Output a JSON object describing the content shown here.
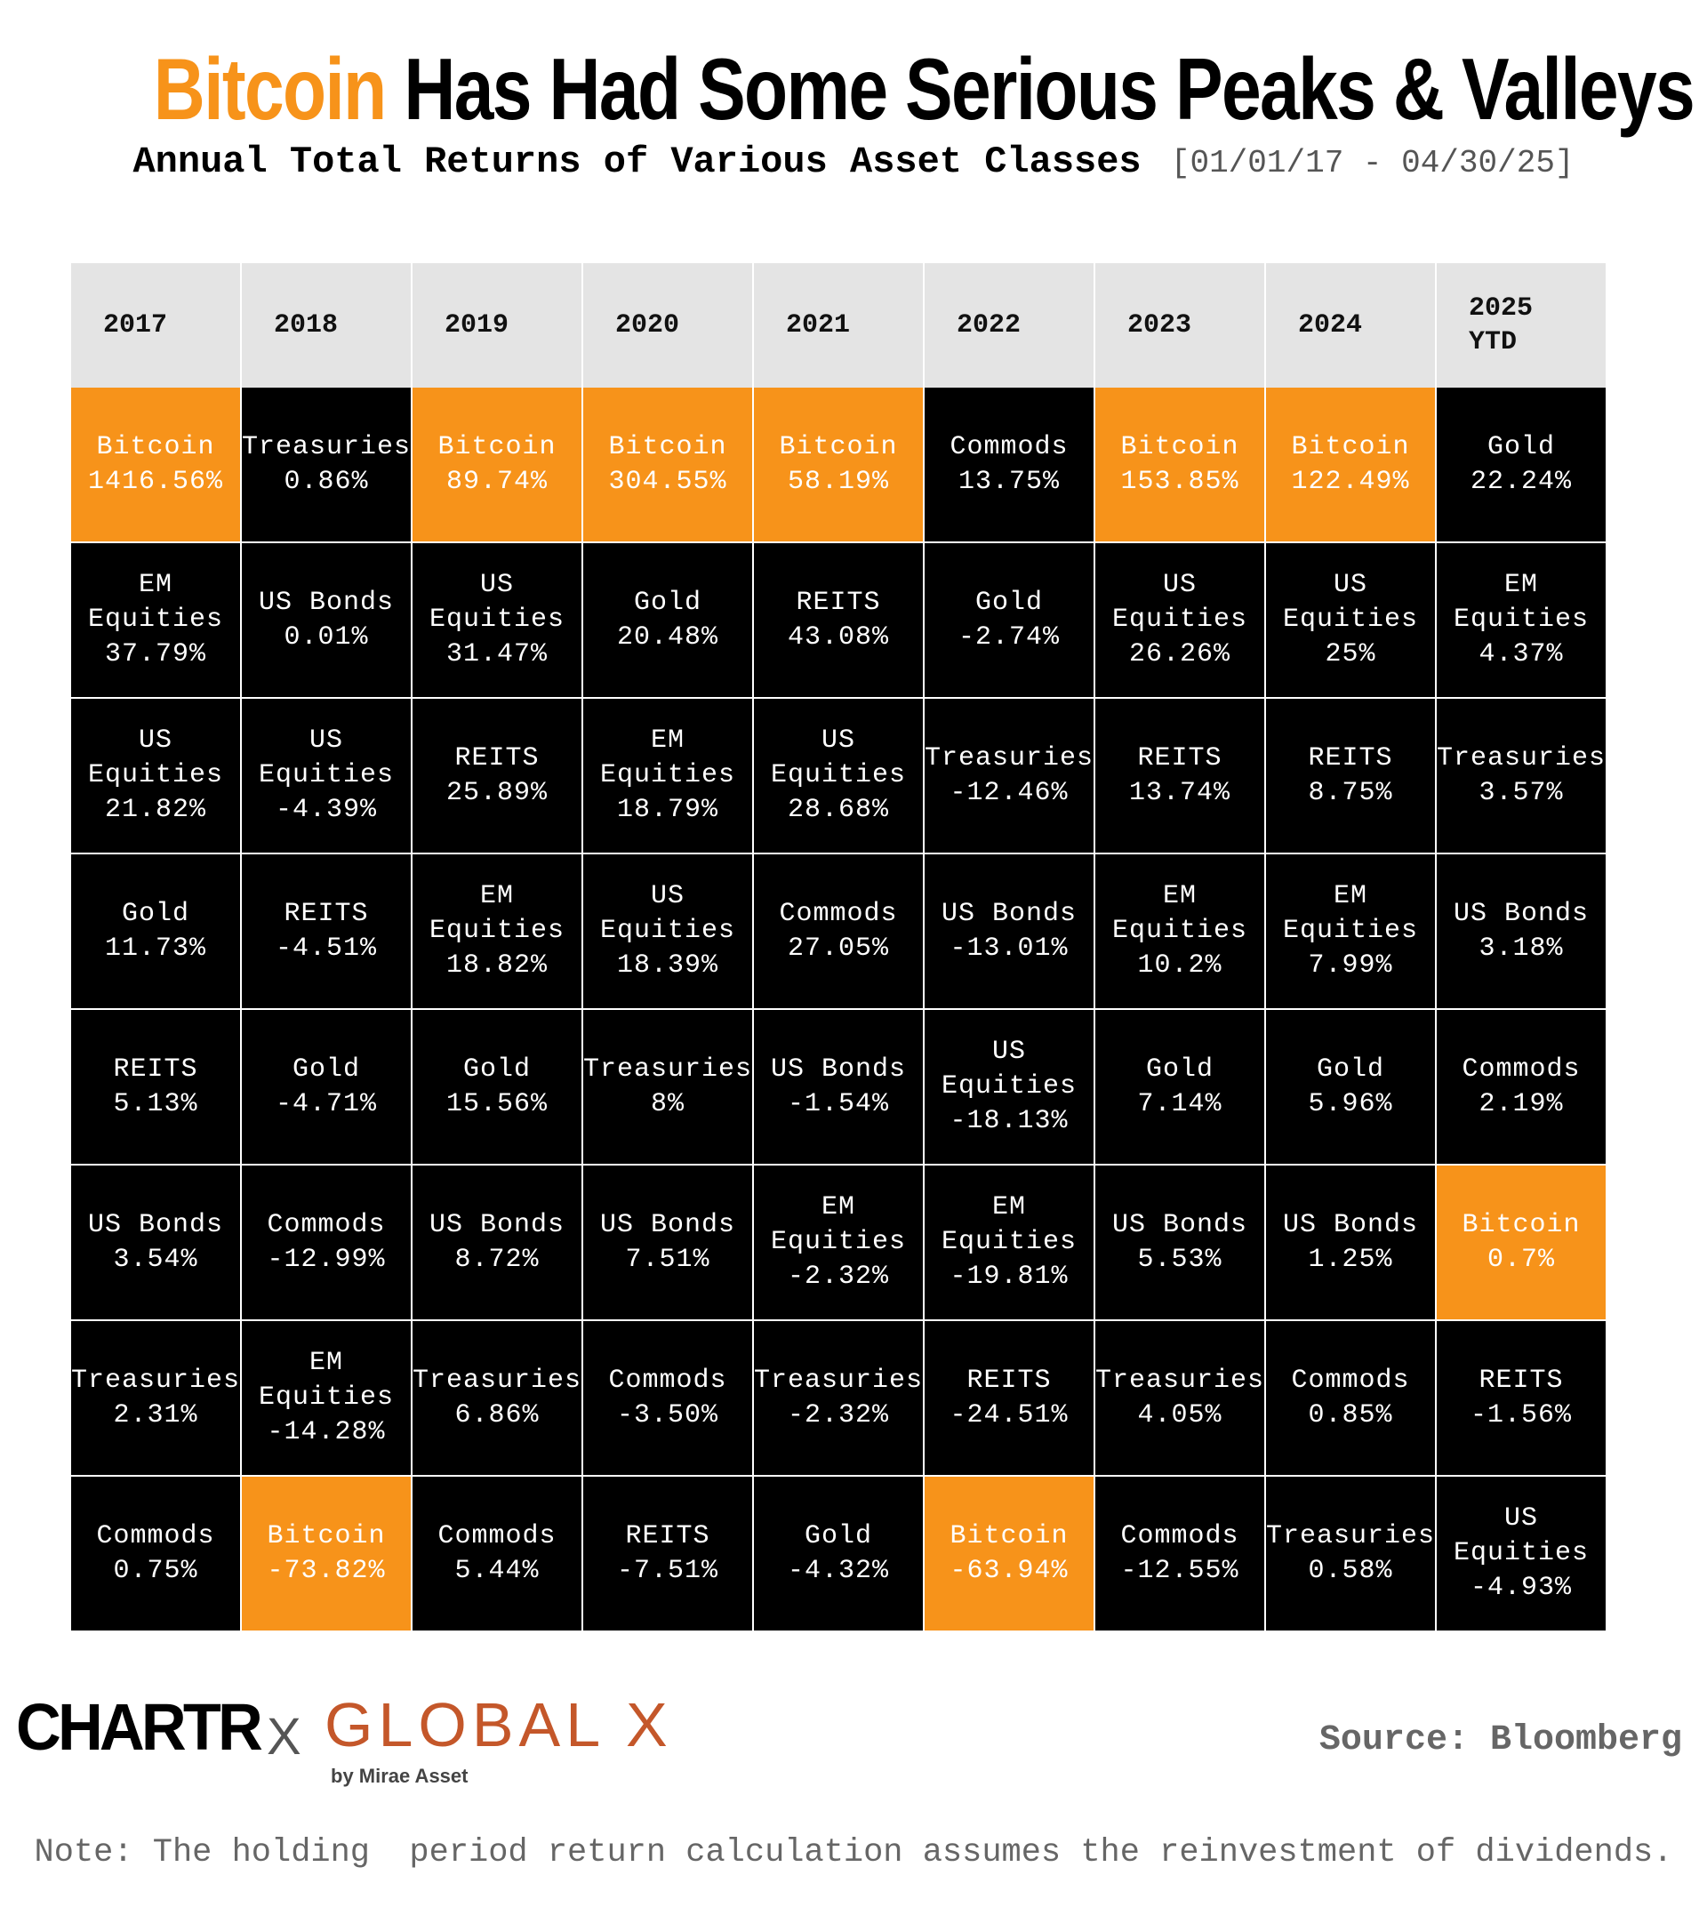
{
  "title": {
    "highlight": "Bitcoin",
    "rest": "Has Had Some Serious Peaks & Valleys"
  },
  "subtitle": {
    "text": "Annual Total Returns of Various Asset Classes",
    "range": "[01/01/17 - 04/30/25]"
  },
  "colors": {
    "bitcoin": "#F7931A",
    "cell_bg": "#000000",
    "header_bg": "#e4e4e4",
    "global_x": "#c4572a"
  },
  "chart_data": {
    "type": "table",
    "columns": [
      "2017",
      "2018",
      "2019",
      "2020",
      "2021",
      "2022",
      "2023",
      "2024",
      "2025\nYTD"
    ],
    "rows_by_column": [
      [
        {
          "asset": "Bitcoin",
          "return": "1416.56%"
        },
        {
          "asset": "EM\nEquities",
          "return": "37.79%"
        },
        {
          "asset": "US\nEquities",
          "return": "21.82%"
        },
        {
          "asset": "Gold",
          "return": "11.73%"
        },
        {
          "asset": "REITS",
          "return": "5.13%"
        },
        {
          "asset": "US Bonds",
          "return": "3.54%"
        },
        {
          "asset": "Treasuries",
          "return": "2.31%"
        },
        {
          "asset": "Commods",
          "return": "0.75%"
        }
      ],
      [
        {
          "asset": "Treasuries",
          "return": "0.86%"
        },
        {
          "asset": "US Bonds",
          "return": "0.01%"
        },
        {
          "asset": "US\nEquities",
          "return": "-4.39%"
        },
        {
          "asset": "REITS",
          "return": "-4.51%"
        },
        {
          "asset": "Gold",
          "return": "-4.71%"
        },
        {
          "asset": "Commods",
          "return": "-12.99%"
        },
        {
          "asset": "EM\nEquities",
          "return": "-14.28%"
        },
        {
          "asset": "Bitcoin",
          "return": "-73.82%"
        }
      ],
      [
        {
          "asset": "Bitcoin",
          "return": "89.74%"
        },
        {
          "asset": "US\nEquities",
          "return": "31.47%"
        },
        {
          "asset": "REITS",
          "return": "25.89%"
        },
        {
          "asset": "EM\nEquities",
          "return": "18.82%"
        },
        {
          "asset": "Gold",
          "return": "15.56%"
        },
        {
          "asset": "US Bonds",
          "return": "8.72%"
        },
        {
          "asset": "Treasuries",
          "return": "6.86%"
        },
        {
          "asset": "Commods",
          "return": "5.44%"
        }
      ],
      [
        {
          "asset": "Bitcoin",
          "return": "304.55%"
        },
        {
          "asset": "Gold",
          "return": "20.48%"
        },
        {
          "asset": "EM\nEquities",
          "return": "18.79%"
        },
        {
          "asset": "US\nEquities",
          "return": "18.39%"
        },
        {
          "asset": "Treasuries",
          "return": "8%"
        },
        {
          "asset": "US Bonds",
          "return": "7.51%"
        },
        {
          "asset": "Commods",
          "return": "-3.50%"
        },
        {
          "asset": "REITS",
          "return": "-7.51%"
        }
      ],
      [
        {
          "asset": "Bitcoin",
          "return": "58.19%"
        },
        {
          "asset": "REITS",
          "return": "43.08%"
        },
        {
          "asset": "US\nEquities",
          "return": "28.68%"
        },
        {
          "asset": "Commods",
          "return": "27.05%"
        },
        {
          "asset": "US Bonds",
          "return": "-1.54%"
        },
        {
          "asset": "EM\nEquities",
          "return": "-2.32%"
        },
        {
          "asset": "Treasuries",
          "return": "-2.32%"
        },
        {
          "asset": "Gold",
          "return": "-4.32%"
        }
      ],
      [
        {
          "asset": "Commods",
          "return": "13.75%"
        },
        {
          "asset": "Gold",
          "return": "-2.74%"
        },
        {
          "asset": "Treasuries",
          "return": "-12.46%"
        },
        {
          "asset": "US Bonds",
          "return": "-13.01%"
        },
        {
          "asset": "US\nEquities",
          "return": "-18.13%"
        },
        {
          "asset": "EM\nEquities",
          "return": "-19.81%"
        },
        {
          "asset": "REITS",
          "return": "-24.51%"
        },
        {
          "asset": "Bitcoin",
          "return": "-63.94%"
        }
      ],
      [
        {
          "asset": "Bitcoin",
          "return": "153.85%"
        },
        {
          "asset": "US\nEquities",
          "return": "26.26%"
        },
        {
          "asset": "REITS",
          "return": "13.74%"
        },
        {
          "asset": "EM\nEquities",
          "return": "10.2%"
        },
        {
          "asset": "Gold",
          "return": "7.14%"
        },
        {
          "asset": "US Bonds",
          "return": "5.53%"
        },
        {
          "asset": "Treasuries",
          "return": "4.05%"
        },
        {
          "asset": "Commods",
          "return": "-12.55%"
        }
      ],
      [
        {
          "asset": "Bitcoin",
          "return": "122.49%"
        },
        {
          "asset": "US\nEquities",
          "return": "25%"
        },
        {
          "asset": "REITS",
          "return": "8.75%"
        },
        {
          "asset": "EM\nEquities",
          "return": "7.99%"
        },
        {
          "asset": "Gold",
          "return": "5.96%"
        },
        {
          "asset": "US Bonds",
          "return": "1.25%"
        },
        {
          "asset": "Commods",
          "return": "0.85%"
        },
        {
          "asset": "Treasuries",
          "return": "0.58%"
        }
      ],
      [
        {
          "asset": "Gold",
          "return": "22.24%"
        },
        {
          "asset": "EM\nEquities",
          "return": "4.37%"
        },
        {
          "asset": "Treasuries",
          "return": "3.57%"
        },
        {
          "asset": "US Bonds",
          "return": "3.18%"
        },
        {
          "asset": "Commods",
          "return": "2.19%"
        },
        {
          "asset": "Bitcoin",
          "return": "0.7%"
        },
        {
          "asset": "REITS",
          "return": "-1.56%"
        },
        {
          "asset": "US\nEquities",
          "return": "-4.93%"
        }
      ]
    ]
  },
  "footer": {
    "chartr": "CHARTR",
    "x": "X",
    "global_x": "GLOBAL X",
    "by": "by Mirae Asset",
    "source": "Source: Bloomberg",
    "note": "Note: The holding  period return calculation assumes the reinvestment of dividends."
  }
}
